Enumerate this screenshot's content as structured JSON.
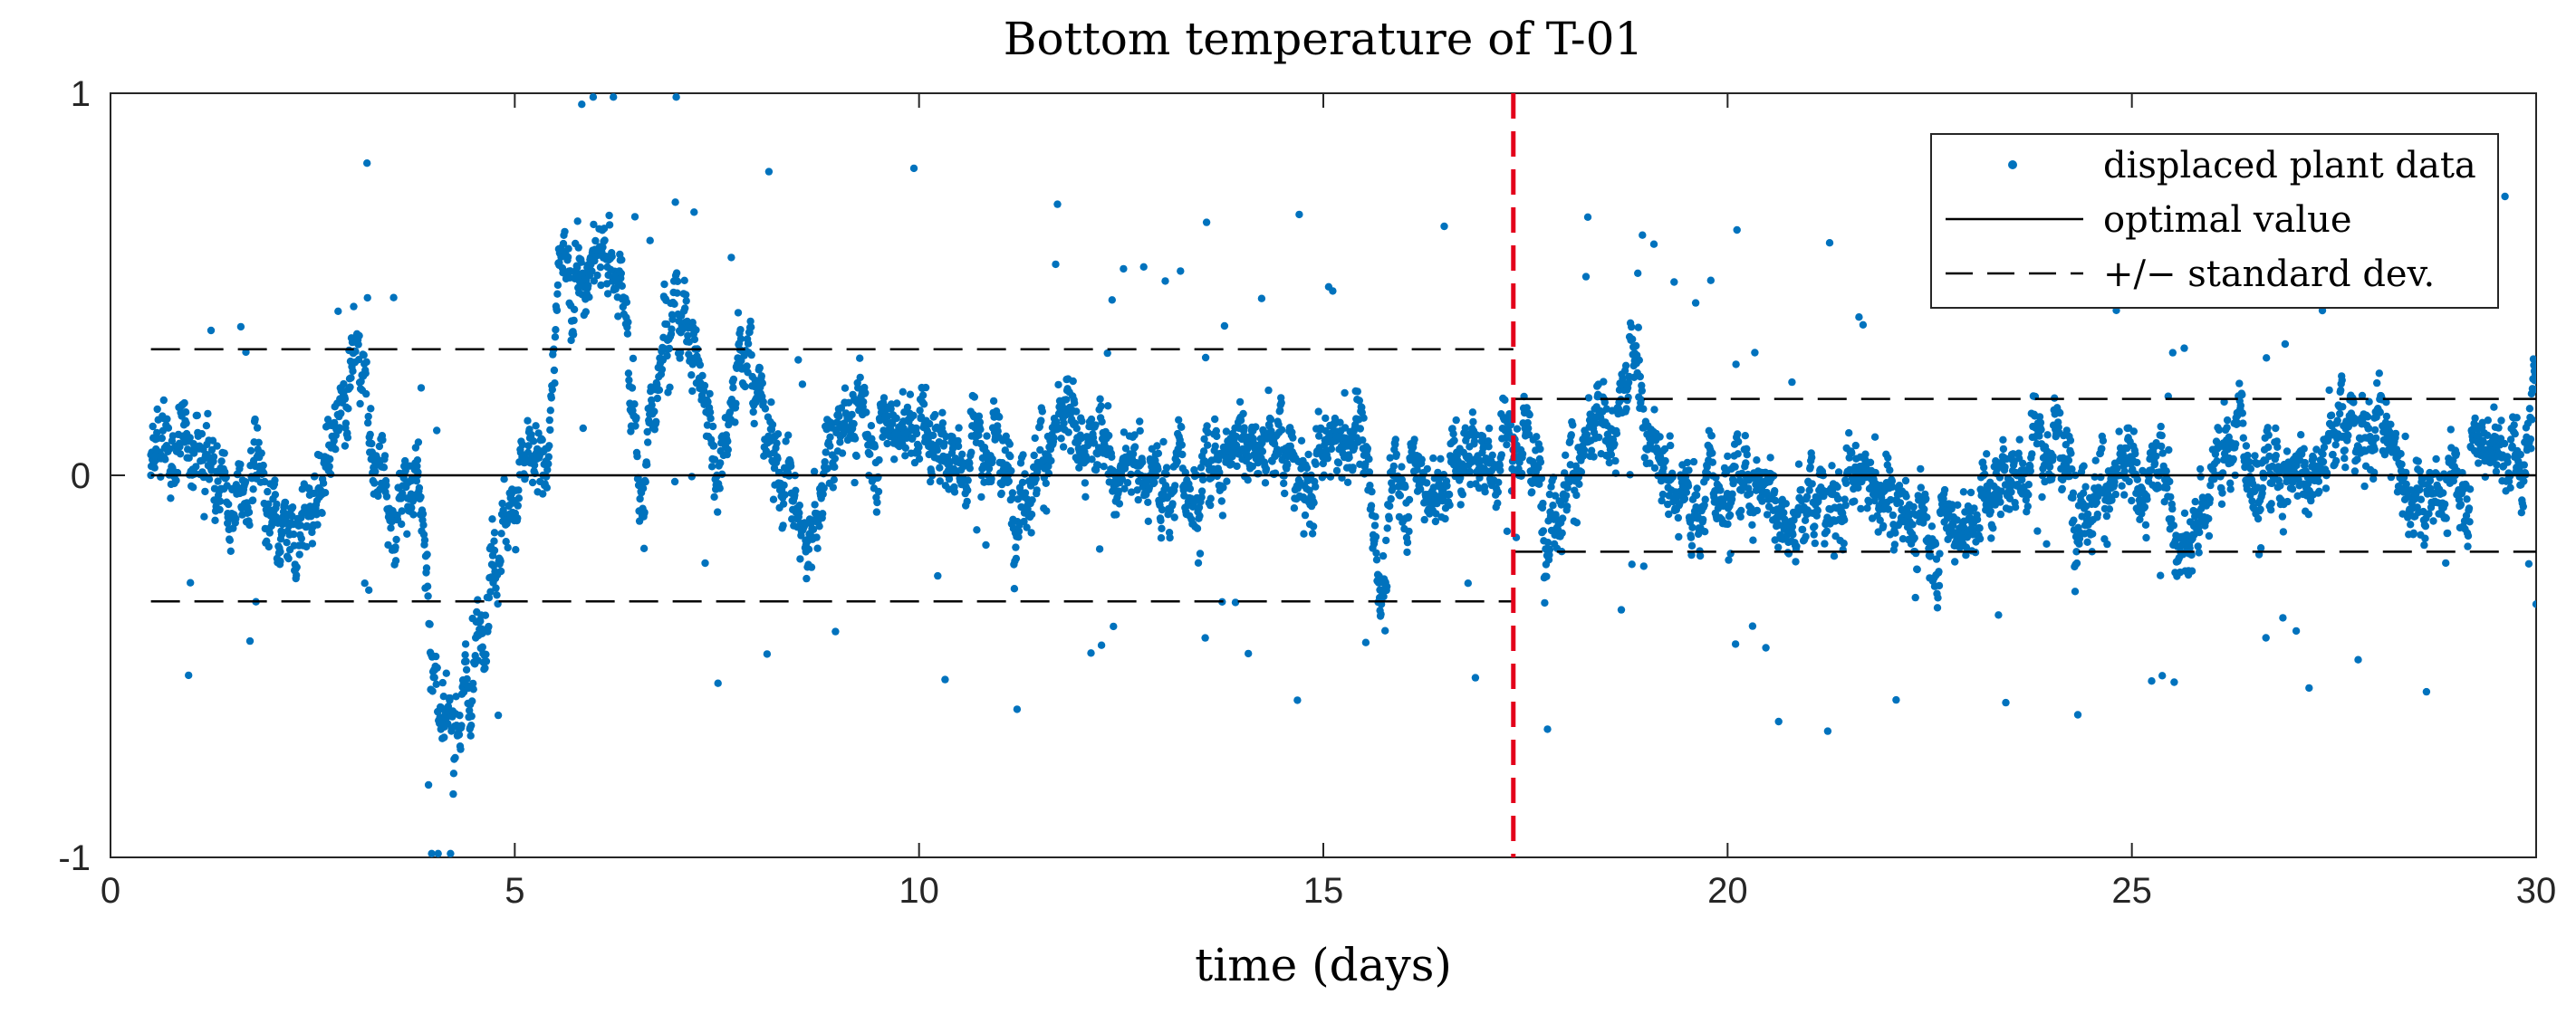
{
  "chart_data": {
    "type": "scatter",
    "title": "Bottom temperature of T-01",
    "xlabel": "time (days)",
    "ylabel": "",
    "xlim": [
      0,
      30
    ],
    "ylim": [
      -1,
      1
    ],
    "xticks": [
      0,
      5,
      10,
      15,
      20,
      25,
      30
    ],
    "yticks": [
      -1,
      0,
      1
    ],
    "xtick_labels": [
      "0",
      "5",
      "10",
      "15",
      "20",
      "25",
      "30"
    ],
    "ytick_labels": [
      "-1",
      "0",
      "1"
    ],
    "grid": false,
    "legend": {
      "placement": "top-right",
      "entries": [
        {
          "label": "displaced plant data",
          "style": "marker"
        },
        {
          "label": "optimal value",
          "style": "solid"
        },
        {
          "label": "+/− standard dev.",
          "style": "dashed"
        }
      ]
    },
    "series": [
      {
        "name": "displaced plant data",
        "color": "#0072BD",
        "note": "dense noisy samples; representative trace reconstructed from visible envelope",
        "x": [
          0.5,
          0.9,
          1.2,
          1.45,
          1.8,
          2.1,
          2.6,
          2.9,
          3.05,
          3.2,
          3.5,
          3.8,
          4.1,
          4.45,
          4.75,
          5.1,
          5.35,
          5.55,
          5.9,
          6.3,
          6.6,
          6.85,
          7.2,
          7.5,
          7.8,
          8.2,
          8.6,
          8.9,
          9.2,
          9.55,
          9.9,
          10.3,
          10.7,
          11.1,
          11.6,
          12.0,
          12.5,
          13.0,
          13.5,
          14.0,
          14.4,
          14.85,
          15.2,
          15.5,
          15.7,
          15.9,
          16.3,
          16.8,
          17.35,
          17.8,
          18.3,
          18.85,
          19.2,
          19.6,
          20.0,
          20.4,
          20.8,
          21.3,
          21.8,
          22.3,
          22.8,
          23.3,
          23.8,
          24.3,
          24.8,
          25.3,
          25.7,
          26.2,
          26.7,
          27.2,
          27.6,
          28.0,
          28.5,
          29.0,
          29.5,
          29.85,
          30.0
        ],
        "y": [
          0.0,
          0.1,
          0.05,
          -0.1,
          0.0,
          -0.2,
          -0.05,
          0.2,
          0.35,
          0.1,
          -0.1,
          0.0,
          -0.65,
          -0.6,
          -0.15,
          0.05,
          0.0,
          0.55,
          0.55,
          0.5,
          -0.1,
          0.5,
          0.4,
          0.0,
          0.3,
          0.1,
          -0.2,
          0.1,
          0.2,
          0.1,
          0.15,
          0.05,
          0.1,
          0.0,
          0.05,
          0.15,
          0.0,
          -0.05,
          0.05,
          0.1,
          0.05,
          0.0,
          0.1,
          0.15,
          -0.3,
          0.05,
          -0.05,
          0.05,
          0.1,
          -0.05,
          0.05,
          0.3,
          -0.05,
          -0.1,
          0.05,
          0.0,
          -0.15,
          -0.05,
          0.0,
          -0.1,
          -0.15,
          -0.05,
          0.1,
          0.0,
          -0.05,
          0.05,
          -0.25,
          0.1,
          0.05,
          0.0,
          0.1,
          0.15,
          -0.05,
          0.0,
          0.1,
          0.0,
          0.25
        ]
      },
      {
        "name": "optimal value",
        "color": "#000000",
        "x": [
          0.5,
          30.0
        ],
        "y": [
          0.0,
          0.0
        ]
      },
      {
        "name": "+ standard dev. (segment 1)",
        "color": "#000000",
        "x": [
          0.5,
          17.35
        ],
        "y": [
          0.33,
          0.33
        ]
      },
      {
        "name": "- standard dev. (segment 1)",
        "color": "#000000",
        "x": [
          0.5,
          17.35
        ],
        "y": [
          -0.33,
          -0.33
        ]
      },
      {
        "name": "+ standard dev. (segment 2)",
        "color": "#000000",
        "x": [
          17.35,
          30.0
        ],
        "y": [
          0.2,
          0.2
        ]
      },
      {
        "name": "- standard dev. (segment 2)",
        "color": "#000000",
        "x": [
          17.35,
          30.0
        ],
        "y": [
          -0.2,
          -0.2
        ]
      }
    ],
    "annotations": [
      {
        "type": "vertical-line",
        "x": 17.35,
        "color": "#E3001B",
        "style": "dashed"
      }
    ],
    "colors": {
      "data": "#0072BD",
      "reference": "#000000",
      "marker_line": "#E3001B"
    }
  }
}
